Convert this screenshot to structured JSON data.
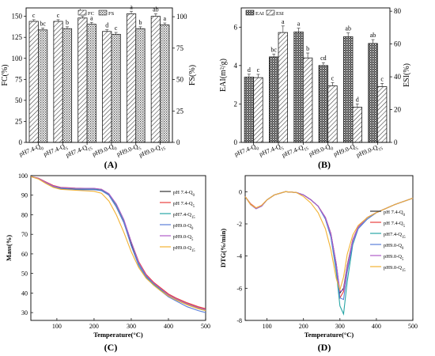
{
  "figure_labels": [
    "(A)",
    "(B)",
    "(C)",
    "(D)"
  ],
  "colors": {
    "axis": "#000000",
    "bar_fill": "#ffffff",
    "bar_stroke": "#222222",
    "error": "#555555"
  },
  "chart_data": [
    {
      "panel": "(A)",
      "type": "bar",
      "categories": [
        "pH7.4-Q0",
        "pH7.4-Q5",
        "pH7.4-Q15",
        "pH9.0-Q0",
        "pH9.0-Q5",
        "pH9.0-Q15"
      ],
      "category_parts": [
        [
          "pH7.4-Q",
          "0"
        ],
        [
          "pH7.4-Q",
          "5"
        ],
        [
          "pH7.4-Q",
          "15"
        ],
        [
          "pH9.0-Q",
          "0"
        ],
        [
          "pH9.0-Q",
          "5"
        ],
        [
          "pH9.0-Q",
          "15"
        ]
      ],
      "ylabel_left": "FC(%)",
      "ylabel_right": "FS(%)",
      "ylim_left": [
        0,
        160
      ],
      "yticks_left": [
        0,
        25,
        50,
        75,
        100,
        125,
        150
      ],
      "ylim_right": [
        0,
        107
      ],
      "yticks_right": [
        0,
        25,
        50,
        75,
        100
      ],
      "legend": [
        "FC",
        "FS"
      ],
      "series": [
        {
          "name": "FC",
          "axis": "left",
          "pattern": "hatch",
          "values": [
            144,
            144,
            148,
            132,
            153,
            150
          ],
          "errors": [
            2,
            2,
            2,
            2,
            3,
            3
          ],
          "letters": [
            "c",
            "c",
            "bc",
            "d",
            "a",
            "ab"
          ]
        },
        {
          "name": "FS",
          "axis": "right",
          "pattern": "dots",
          "values": [
            89.5,
            90.5,
            94,
            86,
            90.5,
            93.5
          ],
          "errors": [
            1.5,
            1.5,
            1.5,
            1.5,
            1.5,
            1.5
          ],
          "letters": [
            "bc",
            "b",
            "a",
            "c",
            "b",
            "a"
          ]
        }
      ]
    },
    {
      "panel": "(B)",
      "type": "bar",
      "categories": [
        "pH7.4-Q0",
        "pH7.4-Q5",
        "pH7.4-Q15",
        "pH9.0-Q0",
        "pH9.0-Q5",
        "pH9.0-Q15"
      ],
      "category_parts": [
        [
          "pH7.4-Q",
          "0"
        ],
        [
          "pH7.4-Q",
          "5"
        ],
        [
          "pH7.4-Q",
          "15"
        ],
        [
          "pH9.0-Q",
          "0"
        ],
        [
          "pH9.0-Q",
          "5"
        ],
        [
          "pH9.0-Q",
          "15"
        ]
      ],
      "ylabel_left": "EAI(m²/g)",
      "ylabel_right": "ESI(%)",
      "ylim_left": [
        0,
        7
      ],
      "yticks_left": [
        0,
        2,
        4,
        6
      ],
      "ylim_right": [
        0,
        82
      ],
      "yticks_right": [
        0,
        20,
        40,
        60,
        80
      ],
      "legend": [
        "EAI",
        "ESI"
      ],
      "series": [
        {
          "name": "EAI",
          "axis": "left",
          "pattern": "dense",
          "values": [
            3.4,
            4.45,
            5.75,
            4.0,
            5.5,
            5.15
          ],
          "errors": [
            0.15,
            0.15,
            0.2,
            0.15,
            0.2,
            0.2
          ],
          "letters": [
            "d",
            "bc",
            "a",
            "cd",
            "ab",
            "ab"
          ]
        },
        {
          "name": "ESI",
          "axis": "right",
          "pattern": "hatch",
          "values": [
            39.5,
            67,
            51.5,
            34.5,
            21.5,
            34
          ],
          "errors": [
            2,
            4,
            3,
            2,
            2,
            2
          ],
          "letters": [
            "c",
            "a",
            "b",
            "c",
            "d",
            "c"
          ]
        }
      ]
    },
    {
      "panel": "(C)",
      "type": "line",
      "xlabel": "Temperature(°C)",
      "ylabel": "Mass(%)",
      "xlim": [
        30,
        500
      ],
      "ylim": [
        26,
        100
      ],
      "xticks": [
        100,
        200,
        300,
        400,
        500
      ],
      "yticks": [
        30,
        40,
        50,
        60,
        70,
        80,
        90,
        100
      ],
      "legend_position": "right",
      "series": [
        {
          "name": "pH 7.4-Q0",
          "label_parts": [
            "pH 7.4-Q",
            "0"
          ],
          "color": "#333333",
          "x": [
            30,
            50,
            70,
            90,
            110,
            150,
            200,
            220,
            240,
            260,
            280,
            300,
            320,
            340,
            360,
            380,
            400,
            420,
            450,
            480,
            500
          ],
          "y": [
            99.5,
            98.5,
            96.5,
            94.5,
            93.5,
            93,
            93,
            92.5,
            90,
            84,
            76,
            65,
            55,
            49,
            45,
            42,
            39,
            37,
            34.5,
            32.5,
            31.5
          ]
        },
        {
          "name": "pH 7.4-Q5",
          "label_parts": [
            "pH 7.4-Q",
            "5"
          ],
          "color": "#e8403e",
          "x": [
            30,
            50,
            70,
            90,
            110,
            150,
            200,
            220,
            240,
            260,
            280,
            300,
            320,
            340,
            360,
            380,
            400,
            420,
            450,
            480,
            500
          ],
          "y": [
            99.5,
            98.7,
            96.8,
            95,
            94,
            93.6,
            93.4,
            93,
            90.5,
            85,
            77,
            66,
            56,
            49.5,
            45.5,
            42.5,
            39.5,
            37.5,
            35,
            33,
            32
          ]
        },
        {
          "name": "pH7.4-Q15",
          "label_parts": [
            "pH7.4-Q",
            "15"
          ],
          "color": "#29a6a6",
          "x": [
            30,
            50,
            70,
            90,
            110,
            150,
            200,
            220,
            240,
            260,
            280,
            300,
            320,
            340,
            360,
            380,
            400,
            420,
            450,
            480,
            500
          ],
          "y": [
            99.5,
            98.5,
            96.5,
            94.6,
            93.8,
            93.3,
            93.3,
            92.8,
            90.5,
            85,
            77,
            66,
            55,
            48.5,
            44.5,
            41.5,
            38.5,
            36.5,
            34,
            32,
            31
          ]
        },
        {
          "name": "pH9.0-Q0",
          "label_parts": [
            "pH9.0-Q",
            "0"
          ],
          "color": "#5a7fd9",
          "x": [
            30,
            50,
            70,
            90,
            110,
            150,
            200,
            220,
            240,
            260,
            280,
            300,
            320,
            340,
            360,
            380,
            400,
            420,
            450,
            480,
            500
          ],
          "y": [
            99.5,
            98.5,
            96.3,
            94.3,
            93.3,
            92.8,
            92.8,
            92.3,
            90,
            84,
            76,
            64,
            54,
            48,
            44,
            41,
            38,
            36,
            33,
            31,
            30
          ]
        },
        {
          "name": "pH9.0-Q5",
          "label_parts": [
            "pH9.0-Q",
            "5"
          ],
          "color": "#b05cc9",
          "x": [
            30,
            50,
            70,
            90,
            110,
            150,
            200,
            220,
            240,
            260,
            280,
            300,
            320,
            340,
            360,
            380,
            400,
            420,
            450,
            480,
            500
          ],
          "y": [
            99.5,
            98.6,
            96.6,
            94.7,
            93.9,
            93.5,
            93.5,
            93,
            90.8,
            85.5,
            77.5,
            66,
            55.5,
            49,
            45,
            42,
            39,
            37,
            34.5,
            32.5,
            31.5
          ]
        },
        {
          "name": "pH9.0-Q15",
          "label_parts": [
            "pH9.0-Q",
            "15"
          ],
          "color": "#f2b233",
          "x": [
            30,
            50,
            70,
            90,
            110,
            150,
            200,
            220,
            240,
            260,
            280,
            300,
            320,
            340,
            360,
            380,
            400,
            420,
            450,
            480,
            500
          ],
          "y": [
            99.5,
            98.3,
            96,
            94,
            93,
            92.5,
            92,
            91,
            87,
            80,
            71,
            61,
            53,
            47.5,
            44,
            41,
            38.5,
            36.5,
            34,
            32,
            31
          ]
        }
      ]
    },
    {
      "panel": "(D)",
      "type": "line",
      "xlabel": "Temperature(°C)",
      "ylabel": "DTG(%/min)",
      "xlim": [
        40,
        500
      ],
      "ylim": [
        -8,
        1
      ],
      "xticks": [
        100,
        200,
        300,
        400,
        500
      ],
      "yticks": [
        0,
        -2,
        -4,
        -6,
        -8
      ],
      "legend_position": "right",
      "series": [
        {
          "name": "pH 7.4-Q0",
          "label_parts": [
            "pH 7.4-Q",
            "0"
          ],
          "color": "#333333",
          "x": [
            40,
            55,
            70,
            85,
            100,
            120,
            150,
            180,
            200,
            220,
            240,
            260,
            275,
            290,
            300,
            310,
            320,
            335,
            350,
            375,
            400,
            450,
            500
          ],
          "y": [
            -0.3,
            -0.8,
            -1.05,
            -0.9,
            -0.5,
            -0.2,
            0,
            -0.05,
            -0.2,
            -0.5,
            -0.9,
            -1.6,
            -2.6,
            -4.5,
            -6.3,
            -6,
            -4.6,
            -3,
            -2.2,
            -1.6,
            -1.3,
            -0.8,
            -0.4
          ]
        },
        {
          "name": "pH 7.4-Q5",
          "label_parts": [
            "pH 7.4-Q",
            "5"
          ],
          "color": "#e8403e",
          "x": [
            40,
            55,
            70,
            85,
            100,
            120,
            150,
            180,
            200,
            220,
            240,
            260,
            275,
            290,
            300,
            310,
            320,
            335,
            350,
            375,
            400,
            450,
            500
          ],
          "y": [
            -0.3,
            -0.75,
            -1,
            -0.85,
            -0.5,
            -0.2,
            0,
            -0.05,
            -0.2,
            -0.5,
            -0.9,
            -1.6,
            -2.6,
            -4.6,
            -6.6,
            -6.2,
            -4.7,
            -3,
            -2.2,
            -1.6,
            -1.3,
            -0.8,
            -0.4
          ]
        },
        {
          "name": "pH7.4-Q15",
          "label_parts": [
            "pH7.4-Q",
            "15"
          ],
          "color": "#29a6a6",
          "x": [
            40,
            55,
            70,
            85,
            100,
            120,
            150,
            180,
            200,
            220,
            240,
            260,
            275,
            290,
            300,
            310,
            320,
            335,
            350,
            375,
            400,
            450,
            500
          ],
          "y": [
            -0.3,
            -0.8,
            -1.05,
            -0.9,
            -0.5,
            -0.2,
            0,
            -0.05,
            -0.2,
            -0.5,
            -0.9,
            -1.7,
            -2.8,
            -5,
            -7.1,
            -7.6,
            -5.6,
            -3.3,
            -2.3,
            -1.7,
            -1.3,
            -0.8,
            -0.4
          ]
        },
        {
          "name": "pH9.0-Q0",
          "label_parts": [
            "pH9.0-Q",
            "0"
          ],
          "color": "#5a7fd9",
          "x": [
            40,
            55,
            70,
            85,
            100,
            120,
            150,
            180,
            200,
            220,
            240,
            260,
            275,
            290,
            300,
            310,
            320,
            335,
            350,
            375,
            400,
            450,
            500
          ],
          "y": [
            -0.3,
            -0.8,
            -1.05,
            -0.9,
            -0.5,
            -0.2,
            0,
            -0.05,
            -0.2,
            -0.5,
            -0.9,
            -1.7,
            -2.8,
            -4.8,
            -6.6,
            -6.7,
            -5,
            -3.2,
            -2.3,
            -1.7,
            -1.3,
            -0.8,
            -0.4
          ]
        },
        {
          "name": "pH9.0-Q5",
          "label_parts": [
            "pH9.0-Q",
            "5"
          ],
          "color": "#b05cc9",
          "x": [
            40,
            55,
            70,
            85,
            100,
            120,
            150,
            180,
            200,
            220,
            240,
            260,
            275,
            290,
            300,
            310,
            320,
            335,
            350,
            375,
            400,
            450,
            500
          ],
          "y": [
            -0.3,
            -0.8,
            -1.05,
            -0.9,
            -0.5,
            -0.2,
            0,
            -0.05,
            -0.2,
            -0.5,
            -0.9,
            -1.6,
            -2.6,
            -4.5,
            -6.2,
            -6.1,
            -4.7,
            -3,
            -2.2,
            -1.6,
            -1.3,
            -0.8,
            -0.4
          ]
        },
        {
          "name": "pH9.0-Q15",
          "label_parts": [
            "pH9.0-Q",
            "15"
          ],
          "color": "#f2b233",
          "x": [
            40,
            55,
            70,
            85,
            100,
            120,
            150,
            180,
            200,
            220,
            240,
            260,
            275,
            290,
            300,
            310,
            320,
            335,
            350,
            375,
            400,
            450,
            500
          ],
          "y": [
            -0.3,
            -0.8,
            -1.0,
            -0.85,
            -0.5,
            -0.2,
            0,
            -0.05,
            -0.3,
            -0.7,
            -1.3,
            -2.3,
            -3.6,
            -5.4,
            -6.1,
            -5.3,
            -3.9,
            -2.7,
            -2.1,
            -1.6,
            -1.3,
            -0.8,
            -0.4
          ]
        }
      ]
    }
  ]
}
